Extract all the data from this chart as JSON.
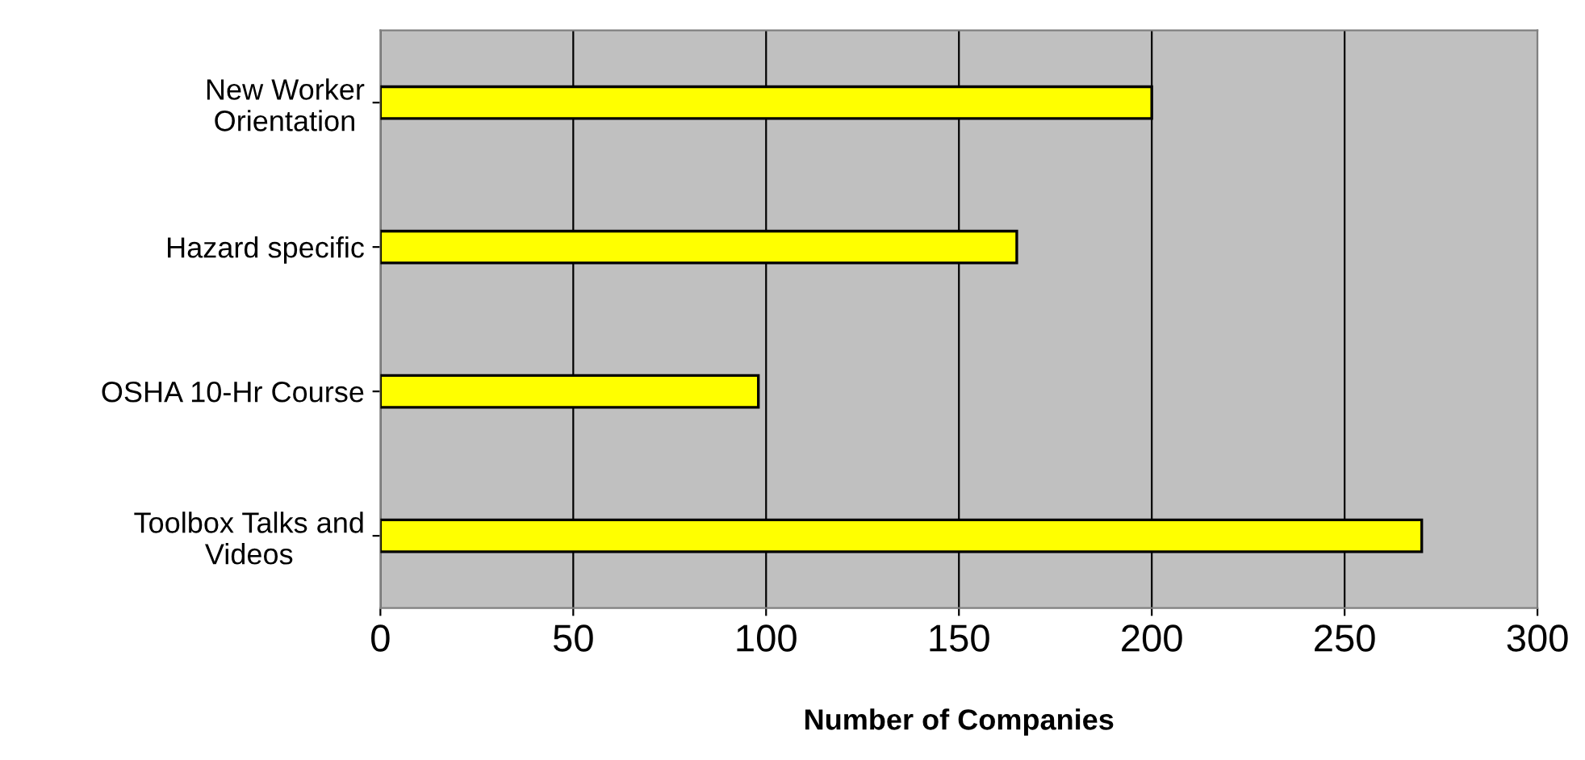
{
  "chart_data": {
    "type": "bar",
    "orientation": "horizontal",
    "xlabel": "Number of Companies",
    "categories": [
      "New Worker\nOrientation",
      "Hazard specific",
      "OSHA 10-Hr Course",
      "Toolbox Talks and\nVideos"
    ],
    "values": [
      200,
      165,
      98,
      270
    ],
    "color": "#ffff00",
    "xlim": [
      0,
      300
    ],
    "xticks": [
      0,
      50,
      100,
      150,
      200,
      250,
      300
    ],
    "grid": "x",
    "legend": false
  }
}
